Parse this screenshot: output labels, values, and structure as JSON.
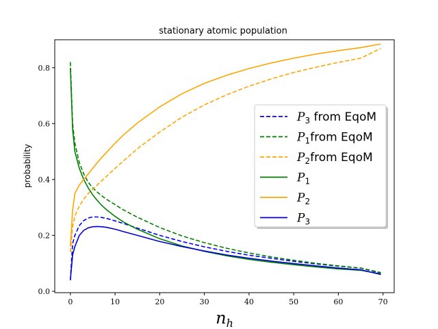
{
  "chart_data": {
    "type": "line",
    "title": "stationary atomic population",
    "xlabel": "n",
    "xlabel_sub": "h",
    "ylabel": "probability",
    "xlim": [
      -3.5,
      72.5
    ],
    "ylim": [
      -0.005,
      0.9
    ],
    "xticks": [
      0,
      10,
      20,
      30,
      40,
      50,
      60,
      70
    ],
    "yticks": [
      0.0,
      0.2,
      0.4,
      0.6,
      0.8
    ],
    "ytick_labels": [
      "0.0",
      "0.2",
      "0.4",
      "0.6",
      "0.8"
    ],
    "legend_position": "center-right",
    "x": [
      0,
      0.5,
      1,
      2,
      3,
      4,
      5,
      6,
      7,
      8,
      10,
      12,
      15,
      20,
      25,
      30,
      35,
      40,
      45,
      50,
      55,
      60,
      65,
      69.5
    ],
    "series": [
      {
        "name": "P3 from EqoM",
        "label_main": "P",
        "label_sub": "3",
        "label_rest": " from EqoM",
        "color": "#0000ff",
        "dash": "dashed",
        "values": [
          0.04,
          0.17,
          0.2,
          0.235,
          0.253,
          0.262,
          0.266,
          0.266,
          0.264,
          0.261,
          0.252,
          0.242,
          0.226,
          0.2,
          0.178,
          0.159,
          0.143,
          0.129,
          0.118,
          0.107,
          0.098,
          0.09,
          0.083,
          0.065
        ]
      },
      {
        "name": "P1from EqoM",
        "label_main": "P",
        "label_sub": "1",
        "label_rest": "from EqoM",
        "color": "#008000",
        "dash": "dashed",
        "values": [
          0.82,
          0.6,
          0.53,
          0.46,
          0.42,
          0.39,
          0.37,
          0.355,
          0.342,
          0.33,
          0.31,
          0.29,
          0.265,
          0.228,
          0.198,
          0.174,
          0.154,
          0.137,
          0.123,
          0.111,
          0.1,
          0.091,
          0.083,
          0.067
        ]
      },
      {
        "name": "P2from EqoM",
        "label_main": "P",
        "label_sub": "2",
        "label_rest": "from EqoM",
        "color": "#ffa500",
        "dash": "dashed",
        "values": [
          0.14,
          0.23,
          0.27,
          0.305,
          0.33,
          0.35,
          0.365,
          0.38,
          0.395,
          0.41,
          0.44,
          0.468,
          0.51,
          0.57,
          0.623,
          0.667,
          0.703,
          0.734,
          0.76,
          0.783,
          0.802,
          0.819,
          0.834,
          0.869
        ]
      },
      {
        "name": "P1",
        "label_main": "P",
        "label_sub": "1",
        "label_rest": "",
        "color": "#008000",
        "dash": "solid",
        "values": [
          0.8,
          0.58,
          0.5,
          0.44,
          0.4,
          0.37,
          0.345,
          0.325,
          0.308,
          0.293,
          0.268,
          0.247,
          0.222,
          0.188,
          0.162,
          0.143,
          0.127,
          0.114,
          0.104,
          0.095,
          0.087,
          0.08,
          0.075,
          0.062
        ]
      },
      {
        "name": "P2",
        "label_main": "P",
        "label_sub": "2",
        "label_rest": "",
        "color": "#ffa500",
        "dash": "solid",
        "values": [
          0.16,
          0.29,
          0.35,
          0.38,
          0.4,
          0.42,
          0.44,
          0.46,
          0.478,
          0.495,
          0.53,
          0.561,
          0.602,
          0.66,
          0.707,
          0.744,
          0.773,
          0.797,
          0.817,
          0.834,
          0.849,
          0.861,
          0.872,
          0.885
        ]
      },
      {
        "name": "P3",
        "label_main": "P",
        "label_sub": "3",
        "label_rest": "",
        "color": "#0000cc",
        "dash": "solid",
        "values": [
          0.04,
          0.13,
          0.16,
          0.2,
          0.218,
          0.227,
          0.231,
          0.232,
          0.231,
          0.229,
          0.222,
          0.213,
          0.2,
          0.178,
          0.16,
          0.144,
          0.13,
          0.118,
          0.108,
          0.099,
          0.091,
          0.083,
          0.077,
          0.06
        ]
      }
    ]
  }
}
